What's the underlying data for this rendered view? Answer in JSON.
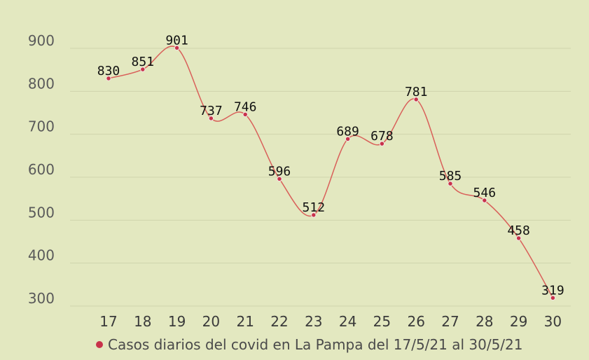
{
  "chart_data": {
    "type": "line",
    "title": "",
    "xlabel": "",
    "ylabel": "",
    "categories": [
      "17",
      "18",
      "19",
      "20",
      "21",
      "22",
      "23",
      "24",
      "25",
      "26",
      "27",
      "28",
      "29",
      "30"
    ],
    "series": [
      {
        "name": "Casos diarios del covid en La Pampa del 17/5/21 al 30/5/21",
        "values": [
          830,
          851,
          901,
          737,
          746,
          596,
          512,
          689,
          678,
          781,
          585,
          546,
          458,
          319
        ]
      }
    ],
    "ylim": [
      300,
      900
    ],
    "yticks": [
      "300",
      "400",
      "500",
      "600",
      "700",
      "800",
      "900"
    ],
    "grid": true,
    "legend_position": "bottom",
    "colors": {
      "background": "#e3e8c0",
      "line": "#d9605a",
      "marker": "#c8324a",
      "grid": "#cfd4ad"
    }
  }
}
